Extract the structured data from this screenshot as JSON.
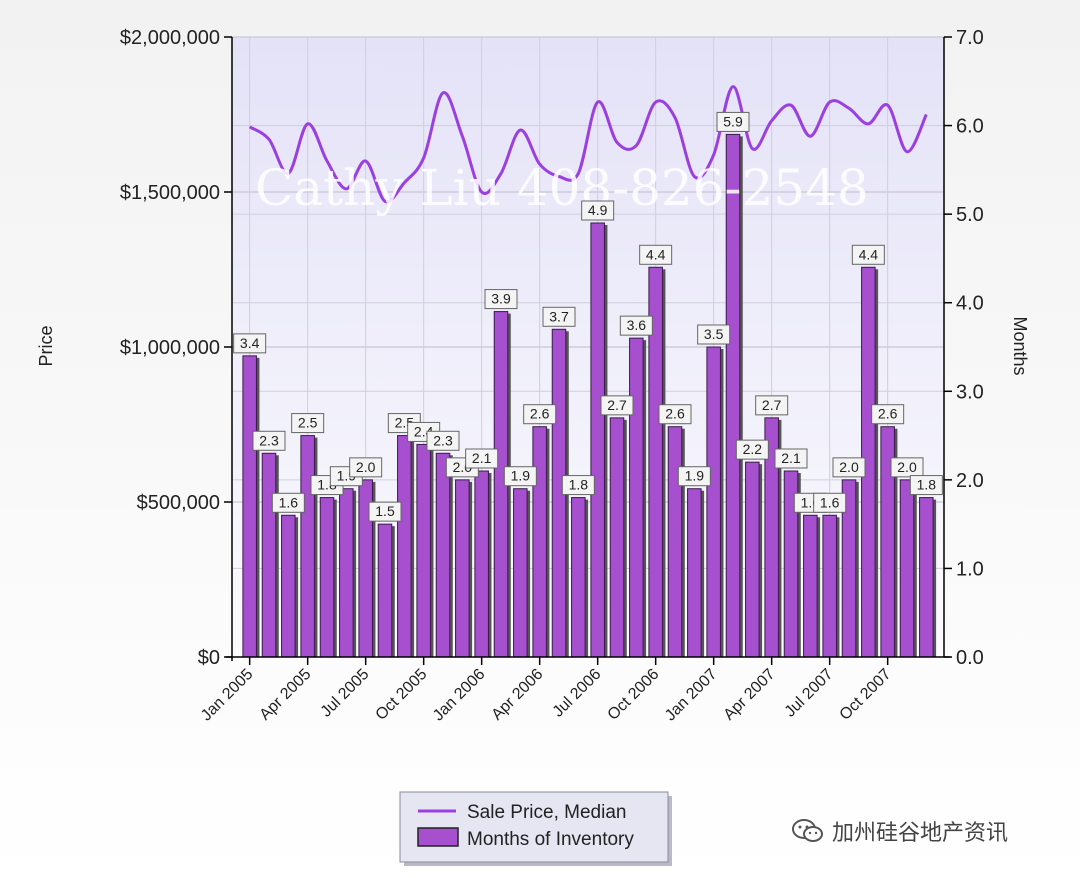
{
  "chart_data": {
    "type": "bar+line",
    "watermark": "Cathy Liu 408-826-2548",
    "y_left": {
      "label": "Price",
      "min": 0,
      "max": 2000000,
      "ticks": [
        "$0",
        "$500,000",
        "$1,000,000",
        "$1,500,000",
        "$2,000,000"
      ]
    },
    "y_right": {
      "label": "Months",
      "min": 0,
      "max": 7,
      "ticks": [
        "0.0",
        "1.0",
        "2.0",
        "3.0",
        "4.0",
        "5.0",
        "6.0",
        "7.0"
      ]
    },
    "x_tick_labels": [
      "Jan 2005",
      "Apr 2005",
      "Jul 2005",
      "Oct 2005",
      "Jan 2006",
      "Apr 2006",
      "Jul 2006",
      "Oct 2006",
      "Jan 2007",
      "Apr 2007",
      "Jul 2007",
      "Oct 2007"
    ],
    "grid": true,
    "legend_position": "bottom-center",
    "series": [
      {
        "name": "Months of Inventory",
        "type": "bar",
        "axis": "right",
        "color": "#a64fcf",
        "values": [
          3.4,
          2.3,
          1.6,
          2.5,
          1.8,
          1.9,
          2.0,
          1.5,
          2.5,
          2.4,
          2.3,
          2.0,
          2.1,
          3.9,
          1.9,
          2.6,
          3.7,
          1.8,
          4.9,
          2.7,
          3.6,
          4.4,
          2.6,
          1.9,
          3.5,
          5.9,
          2.2,
          2.7,
          2.1,
          1.6,
          1.6,
          2.0,
          4.4,
          2.6,
          2.0,
          1.8
        ],
        "labels": [
          "3.4",
          "2.3",
          "1.6",
          "2.5",
          "1.8",
          "1.9",
          "2.0",
          "1.5",
          "2.5",
          "2.4",
          "2.3",
          "2.0",
          "2.1",
          "3.9",
          "1.9",
          "2.6",
          "3.7",
          "1.8",
          "4.9",
          "2.7",
          "3.6",
          "4.4",
          "2.6",
          "1.9",
          "3.5",
          "5.9",
          "2.2",
          "2.7",
          "2.1",
          "1.6",
          "1.6",
          "2.0",
          "4.4",
          "2.6",
          "2.0",
          "1.8"
        ]
      },
      {
        "name": "Sale Price, Median",
        "type": "line",
        "axis": "left",
        "color": "#9b3fe0",
        "values": [
          1710000,
          1670000,
          1560000,
          1720000,
          1600000,
          1510000,
          1600000,
          1470000,
          1530000,
          1610000,
          1820000,
          1680000,
          1500000,
          1560000,
          1700000,
          1590000,
          1550000,
          1560000,
          1790000,
          1660000,
          1650000,
          1790000,
          1740000,
          1550000,
          1620000,
          1840000,
          1640000,
          1730000,
          1780000,
          1680000,
          1790000,
          1770000,
          1720000,
          1780000,
          1630000,
          1750000
        ]
      }
    ]
  },
  "legend": {
    "items": [
      {
        "label": "Sale Price, Median",
        "color": "#9b3fe0"
      },
      {
        "label": "Months of Inventory",
        "color": "#a64fcf"
      }
    ]
  },
  "brand": {
    "icon": "wechat-icon",
    "text": "加州硅谷地产资讯"
  }
}
